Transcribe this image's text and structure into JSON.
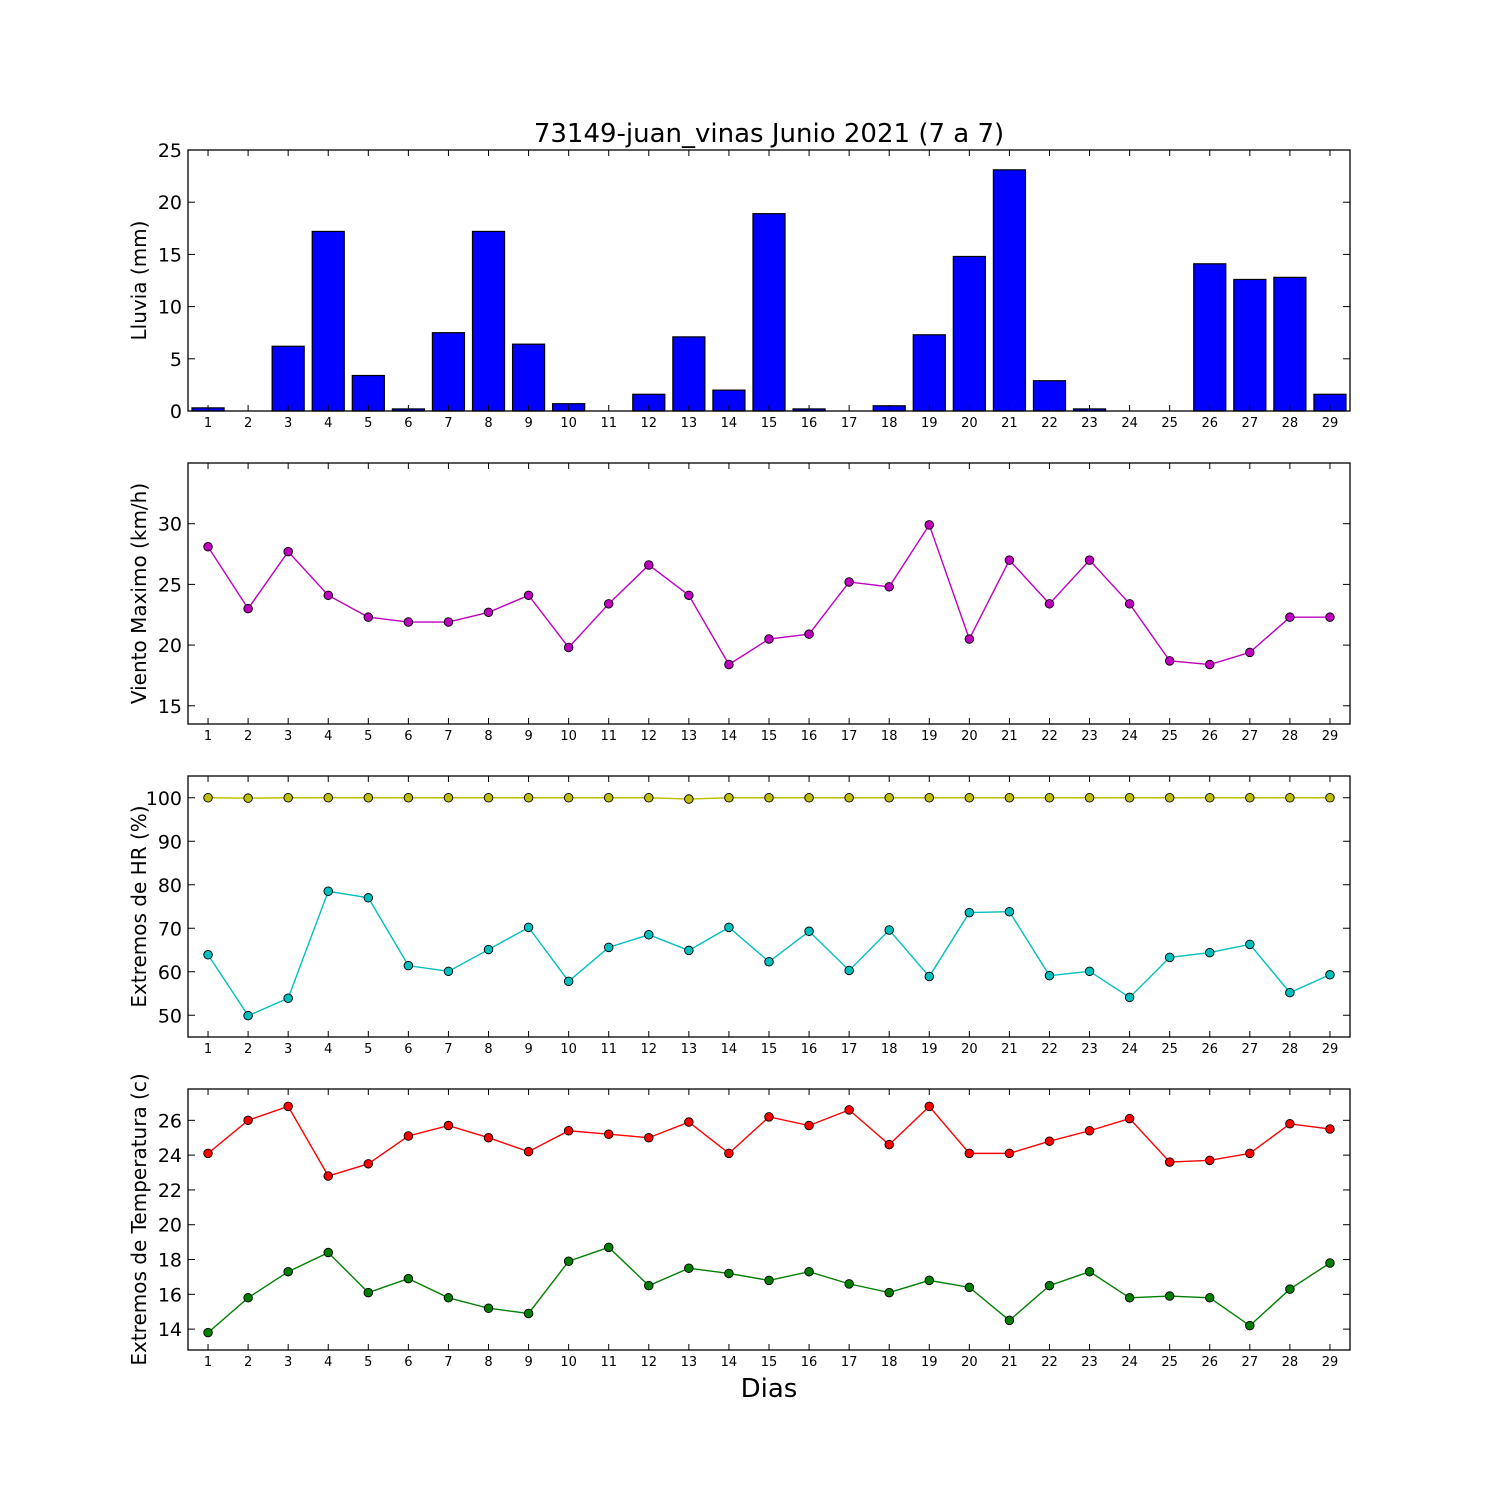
{
  "chart_data": {
    "title": "73149-juan_vinas Junio 2021  (7 a 7)",
    "xlabel": "Dias",
    "categories": [
      "1",
      "2",
      "3",
      "4",
      "5",
      "6",
      "7",
      "8",
      "9",
      "10",
      "11",
      "12",
      "13",
      "14",
      "15",
      "16",
      "17",
      "18",
      "19",
      "20",
      "21",
      "22",
      "23",
      "24",
      "25",
      "26",
      "27",
      "28",
      "29"
    ],
    "panels": [
      {
        "type": "bar",
        "ylabel": "Lluvia (mm)",
        "ylim": [
          0,
          25
        ],
        "yticks": [
          0,
          5,
          10,
          15,
          20,
          25
        ],
        "grid": false,
        "series": [
          {
            "color": "#0000ff",
            "values": [
              0.3,
              0.0,
              6.2,
              17.2,
              3.4,
              0.2,
              7.5,
              17.2,
              6.4,
              0.7,
              0.0,
              1.6,
              7.1,
              2.0,
              18.9,
              0.2,
              0.0,
              0.5,
              7.3,
              14.8,
              23.1,
              2.9,
              0.2,
              0.0,
              0.0,
              14.1,
              12.6,
              12.8,
              1.6
            ]
          }
        ]
      },
      {
        "type": "line",
        "ylabel": "Viento Maximo (km/h)",
        "ylim": [
          13.5,
          35
        ],
        "yticks": [
          15,
          20,
          25,
          30
        ],
        "grid": false,
        "series": [
          {
            "color": "#bf00bf",
            "values": [
              28.1,
              23.0,
              27.7,
              24.1,
              22.3,
              21.9,
              21.9,
              22.7,
              24.1,
              19.8,
              23.4,
              26.6,
              24.1,
              18.4,
              20.5,
              20.9,
              25.2,
              24.8,
              29.9,
              20.5,
              27.0,
              23.4,
              27.0,
              23.4,
              18.7,
              18.4,
              19.4,
              22.3,
              22.3
            ]
          }
        ]
      },
      {
        "type": "line",
        "ylabel": "Extremos de HR (%)",
        "ylim": [
          45,
          105
        ],
        "yticks": [
          50,
          60,
          70,
          80,
          90,
          100
        ],
        "grid": false,
        "series": [
          {
            "color": "#bfbf00",
            "values": [
              100,
              99.9,
              100,
              100,
              100,
              100,
              100,
              100,
              100,
              100,
              100,
              100,
              99.7,
              100,
              100,
              100,
              100,
              100,
              100,
              100,
              100,
              100,
              100,
              100,
              100,
              100,
              100,
              100,
              100
            ]
          },
          {
            "color": "#00bfbf",
            "values": [
              63.9,
              49.9,
              53.9,
              78.5,
              77.0,
              61.4,
              60.1,
              65.1,
              70.2,
              57.8,
              65.6,
              68.5,
              64.9,
              70.2,
              62.3,
              69.3,
              60.3,
              69.6,
              58.9,
              73.6,
              73.8,
              59.1,
              60.1,
              54.1,
              63.3,
              64.4,
              66.3,
              55.2,
              59.3
            ]
          }
        ]
      },
      {
        "type": "line",
        "ylabel": "Extremos de Temperatura (c)",
        "ylim": [
          12.8,
          27.8
        ],
        "yticks": [
          14,
          16,
          18,
          20,
          22,
          24,
          26
        ],
        "grid": false,
        "series": [
          {
            "color": "#ff0000",
            "values": [
              24.1,
              26.0,
              26.8,
              22.8,
              23.5,
              25.1,
              25.7,
              25.0,
              24.2,
              25.4,
              25.2,
              25.0,
              25.9,
              24.1,
              26.2,
              25.7,
              26.6,
              24.6,
              26.8,
              24.1,
              24.1,
              24.8,
              25.4,
              26.1,
              23.6,
              23.7,
              24.1,
              25.8,
              25.5
            ]
          },
          {
            "color": "#008000",
            "values": [
              13.8,
              15.8,
              17.3,
              18.4,
              16.1,
              16.9,
              15.8,
              15.2,
              14.9,
              17.9,
              18.7,
              16.5,
              17.5,
              17.2,
              16.8,
              17.3,
              16.6,
              16.1,
              16.8,
              16.4,
              14.5,
              16.5,
              17.3,
              15.8,
              15.9,
              15.8,
              14.2,
              16.3,
              17.8
            ]
          }
        ]
      }
    ]
  }
}
